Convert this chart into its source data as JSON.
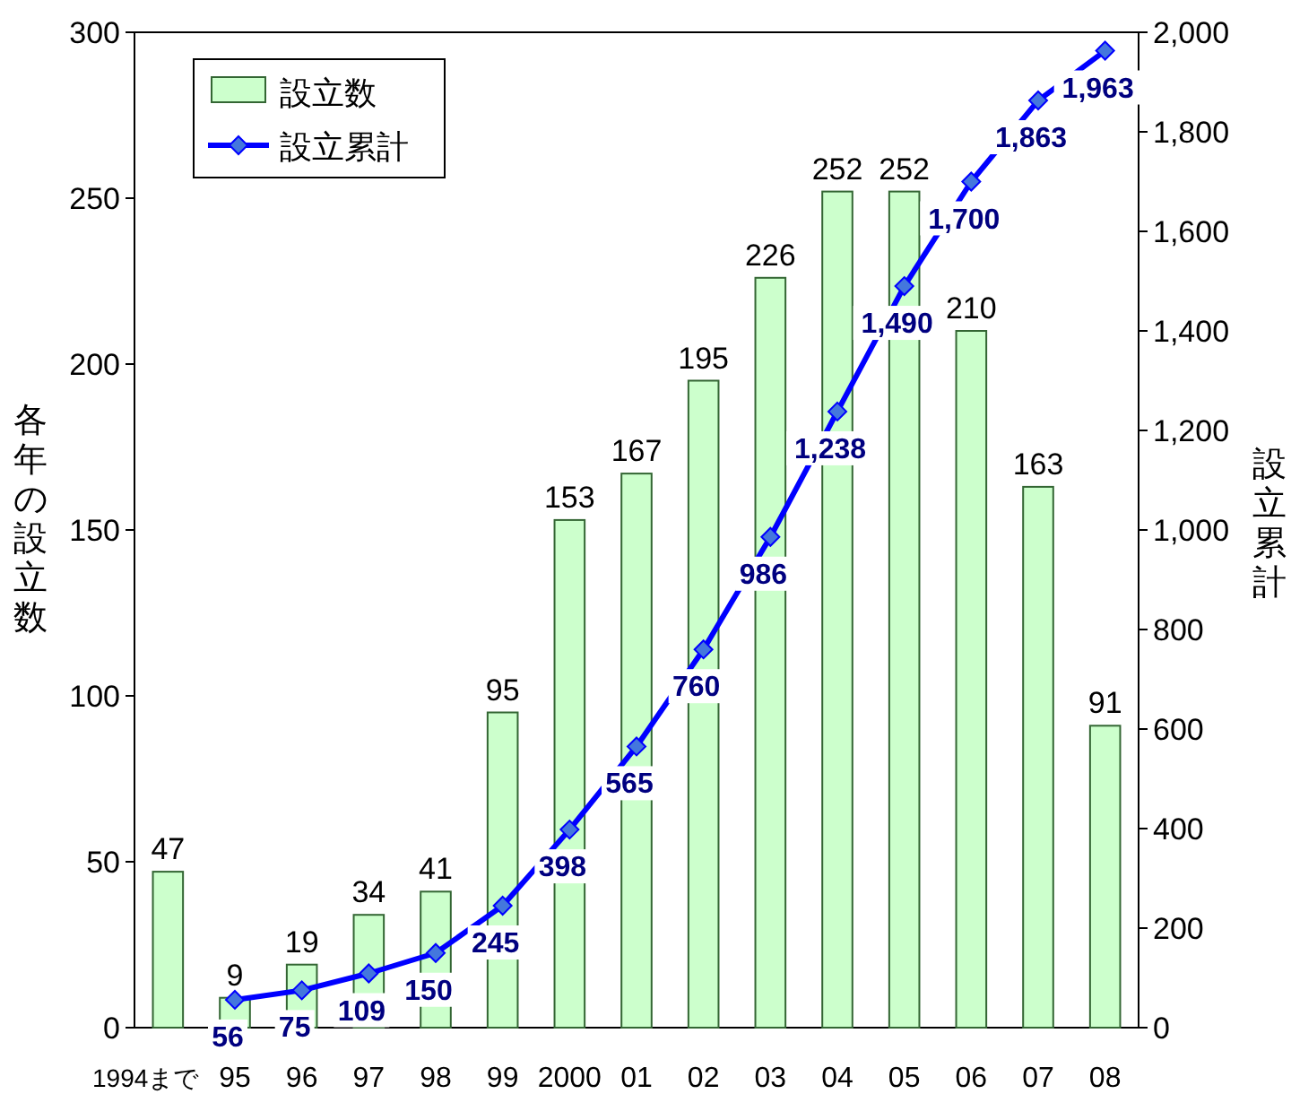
{
  "chart_data": {
    "type": "bar",
    "categories": [
      "1994まで",
      "95",
      "96",
      "97",
      "98",
      "99",
      "2000",
      "01",
      "02",
      "03",
      "04",
      "05",
      "06",
      "07",
      "08"
    ],
    "series": [
      {
        "name": "設立数",
        "color": "#ccffcc",
        "values": [
          47,
          9,
          19,
          34,
          41,
          95,
          153,
          167,
          195,
          226,
          252,
          252,
          210,
          163,
          91
        ],
        "value_labels": [
          "47",
          "9",
          "19",
          "34",
          "41",
          "95",
          "153",
          "167",
          "195",
          "226",
          "252",
          "252",
          "210",
          "163",
          "91"
        ]
      },
      {
        "name": "設立累計",
        "type": "line",
        "axis": "y2",
        "color": "#0000ff",
        "marker": "diamond",
        "values": [
          null,
          56,
          75,
          109,
          150,
          245,
          398,
          565,
          760,
          986,
          1238,
          1490,
          1700,
          1863,
          1963
        ],
        "value_labels": [
          null,
          "56",
          "75",
          "109",
          "150",
          "245",
          "398",
          "565",
          "760",
          "986",
          "1,238",
          "1,490",
          "1,700",
          "1,863",
          "1,963"
        ]
      }
    ],
    "ylabel": "各年の設立数",
    "y2label": "設立累計",
    "ylim": [
      0,
      300
    ],
    "yticks": [
      0,
      50,
      100,
      150,
      200,
      250,
      300
    ],
    "y2lim": [
      0,
      2000
    ],
    "y2ticks": [
      0,
      200,
      400,
      600,
      800,
      {
        "value": 1000,
        "label": "1,000"
      },
      {
        "value": 1200,
        "label": "1,200"
      },
      {
        "value": 1400,
        "label": "1,400"
      },
      {
        "value": 1600,
        "label": "1,600"
      },
      {
        "value": 1800,
        "label": "1,800"
      },
      {
        "value": 2000,
        "label": "2,000"
      }
    ],
    "legend": "top left",
    "grid": false
  }
}
